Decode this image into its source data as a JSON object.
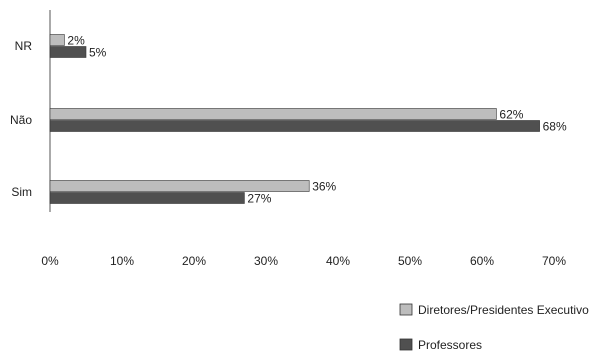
{
  "chart_data": {
    "type": "bar",
    "orientation": "horizontal",
    "categories": [
      "NR",
      "Não",
      "Sim"
    ],
    "series": [
      {
        "name": "Diretores/Presidentes Executivo",
        "values": [
          2,
          62,
          36
        ],
        "labels": [
          "2%",
          "62%",
          "36%"
        ],
        "color": "#bdbdbd"
      },
      {
        "name": "Professores",
        "values": [
          5,
          68,
          27
        ],
        "labels": [
          "5%",
          "68%",
          "27%"
        ],
        "color": "#505050"
      }
    ],
    "x_ticks": [
      "0%",
      "10%",
      "20%",
      "30%",
      "40%",
      "50%",
      "60%",
      "70%"
    ],
    "xlim": [
      0,
      70
    ],
    "grid": false,
    "legend_position": "bottom-right"
  }
}
